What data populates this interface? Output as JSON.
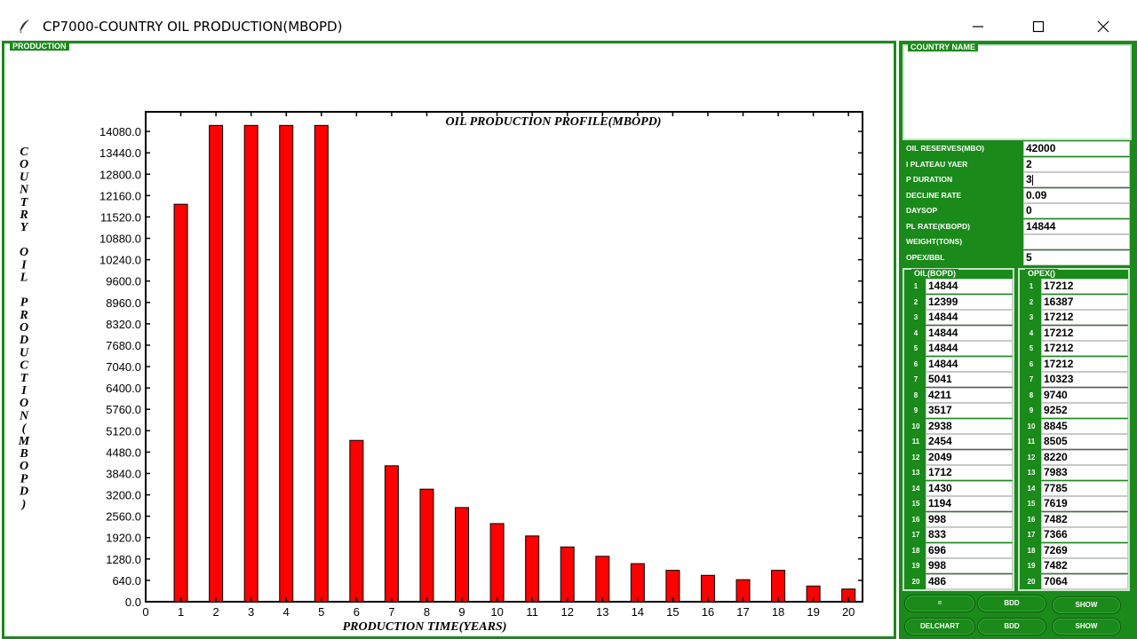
{
  "window": {
    "title": "CP7000-COUNTRY OIL PRODUCTION(MBOPD)"
  },
  "production_frame_label": "PRODUCTION",
  "country_frame_label": "COUNTRY NAME",
  "params": [
    {
      "label": "OIL RESERVES(MBO)",
      "value": "42000"
    },
    {
      "label": "I PLATEAU YAER",
      "value": "2"
    },
    {
      "label": "P DURATION",
      "value": "3"
    },
    {
      "label": "DECLINE RATE",
      "value": "0.09"
    },
    {
      "label": "DAYSOP",
      "value": "0"
    },
    {
      "label": "PL RATE(KBOPD)",
      "value": "14844"
    },
    {
      "label": "WEIGHT(TONS)",
      "value": ""
    },
    {
      "label": "OPEX/BBL",
      "value": "5"
    }
  ],
  "oil_column_label": "OIL(BOPD)",
  "opex_column_label": "OPEX()",
  "oil_values": [
    "14844",
    "12399",
    "14844",
    "14844",
    "14844",
    "14844",
    "5041",
    "4211",
    "3517",
    "2938",
    "2454",
    "2049",
    "1712",
    "1430",
    "1194",
    "998",
    "833",
    "696",
    "998",
    "486"
  ],
  "opex_values": [
    "17212",
    "16387",
    "17212",
    "17212",
    "17212",
    "17212",
    "10323",
    "9740",
    "9252",
    "8845",
    "8505",
    "8220",
    "7983",
    "7785",
    "7619",
    "7482",
    "7366",
    "7269",
    "7482",
    "7064"
  ],
  "buttons": [
    {
      "label": "=",
      "name": "equals-button"
    },
    {
      "label": "BDD",
      "name": "bdd-button-1"
    },
    {
      "label": "SHOW",
      "name": "show-button-1"
    },
    {
      "label": "DELCHART",
      "name": "delchart-button"
    },
    {
      "label": "BDD",
      "name": "bdd-button-2"
    },
    {
      "label": "SHOW",
      "name": "show-button-2"
    }
  ],
  "colors": {
    "frame_green": "#1a8a1a",
    "bar_red": "#ff0000"
  },
  "chart_data": {
    "type": "bar",
    "title": "OIL PRODUCTION PROFILE(MBOPD)",
    "xlabel": "PRODUCTION TIME(YEARS)",
    "ylabel": "COUNTRY OIL PRODUCTION(MBOPD)",
    "categories": [
      1,
      2,
      3,
      4,
      5,
      6,
      7,
      8,
      9,
      10,
      11,
      12,
      13,
      14,
      15,
      16,
      17,
      18,
      19,
      20
    ],
    "x_ticks": [
      "0",
      "1",
      "2",
      "3",
      "4",
      "5",
      "6",
      "7",
      "8",
      "9",
      "10",
      "11",
      "12",
      "13",
      "14",
      "15",
      "16",
      "17",
      "18",
      "19",
      "20"
    ],
    "xlim": [
      0,
      20.4
    ],
    "values": [
      11900,
      14260,
      14260,
      14260,
      14260,
      4830,
      4070,
      3370,
      2820,
      2340,
      1970,
      1640,
      1360,
      1140,
      940,
      790,
      660,
      940,
      470,
      380
    ],
    "y_ticks": [
      "0.0",
      "640.0",
      "1280.0",
      "1920.0",
      "2560.0",
      "3200.0",
      "3840.0",
      "4480.0",
      "5120.0",
      "5760.0",
      "6400.0",
      "7040.0",
      "7680.0",
      "8320.0",
      "8960.0",
      "9600.0",
      "10240.0",
      "10880.0",
      "11520.0",
      "12160.0",
      "12800.0",
      "13440.0",
      "14080.0"
    ],
    "ylim": [
      0,
      14667
    ],
    "grid": false,
    "bar_color": "#ff0000"
  }
}
